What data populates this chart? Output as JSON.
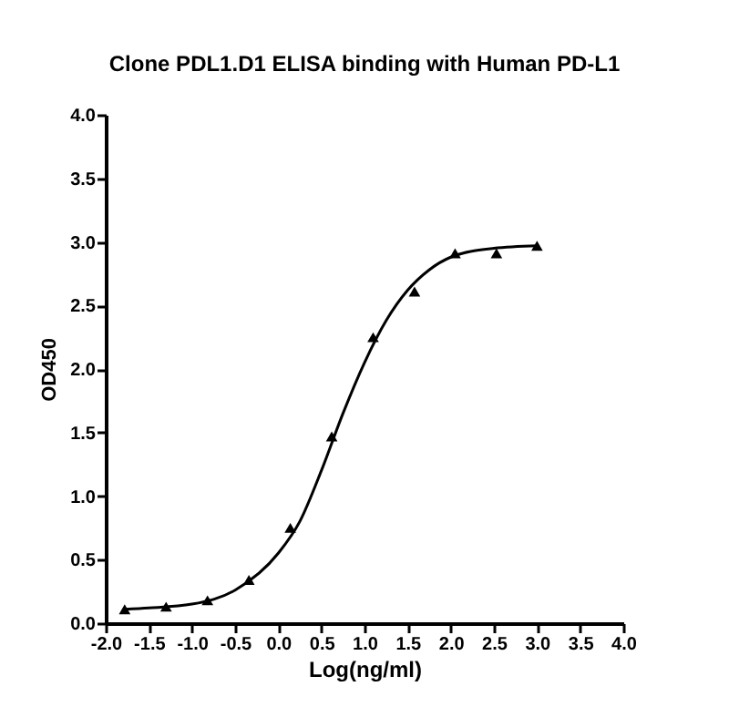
{
  "chart_data": {
    "type": "scatter",
    "title": "Clone PDL1.D1 ELISA binding with Human PD-L1",
    "xlabel": "Log(ng/ml)",
    "ylabel": "OD450",
    "grid": false,
    "xlim": [
      -2.0,
      4.0
    ],
    "xticks": [
      {
        "value": -2,
        "label": "-2.0"
      },
      {
        "value": -1.5,
        "label": "-1.5"
      },
      {
        "value": -1,
        "label": "-1.0"
      },
      {
        "value": -0.5,
        "label": "-0.5"
      },
      {
        "value": 0,
        "label": "0.0"
      },
      {
        "value": 0.5,
        "label": "0.5"
      },
      {
        "value": 1,
        "label": "1.0"
      },
      {
        "value": 1.5,
        "label": "1.5"
      },
      {
        "value": 2,
        "label": "2.0"
      },
      {
        "value": 2.5,
        "label": "2.5"
      },
      {
        "value": 3,
        "label": "3.0"
      },
      {
        "value": 3.5,
        "label": "3.5"
      },
      {
        "value": 4,
        "label": "4.0"
      }
    ],
    "ylim": [
      0.0,
      4.0
    ],
    "yticks": [
      {
        "value": 0,
        "label": "0.0"
      },
      {
        "value": 0.5,
        "label": "0.5"
      },
      {
        "value": 1,
        "label": "1.0"
      },
      {
        "value": 1.5,
        "label": "1.5"
      },
      {
        "value": 2,
        "label": "2.0"
      },
      {
        "value": 2.5,
        "label": "2.5"
      },
      {
        "value": 3,
        "label": "3.0"
      },
      {
        "value": 3.5,
        "label": "3.5"
      },
      {
        "value": 4,
        "label": "4.0"
      }
    ],
    "series": [
      {
        "marker": "triangle",
        "color": "#000000",
        "x": [
          -1.78,
          -1.3,
          -0.82,
          -0.34,
          0.14,
          0.62,
          1.1,
          1.58,
          2.05,
          2.53,
          3.0
        ],
        "values": [
          0.11,
          0.13,
          0.18,
          0.34,
          0.75,
          1.47,
          2.25,
          2.61,
          2.91,
          2.91,
          2.97
        ]
      },
      {
        "type": "line",
        "marker": "none",
        "color": "#000000",
        "x": [
          -1.78,
          -1.5,
          -1.0,
          -0.5,
          0,
          0.25,
          0.5,
          0.75,
          1.0,
          1.25,
          1.5,
          1.75,
          2.0,
          2.5,
          3.0
        ],
        "values": [
          0.11,
          0.12,
          0.15,
          0.26,
          0.55,
          0.8,
          1.2,
          1.65,
          2.05,
          2.38,
          2.62,
          2.78,
          2.88,
          2.95,
          2.97
        ]
      }
    ]
  }
}
